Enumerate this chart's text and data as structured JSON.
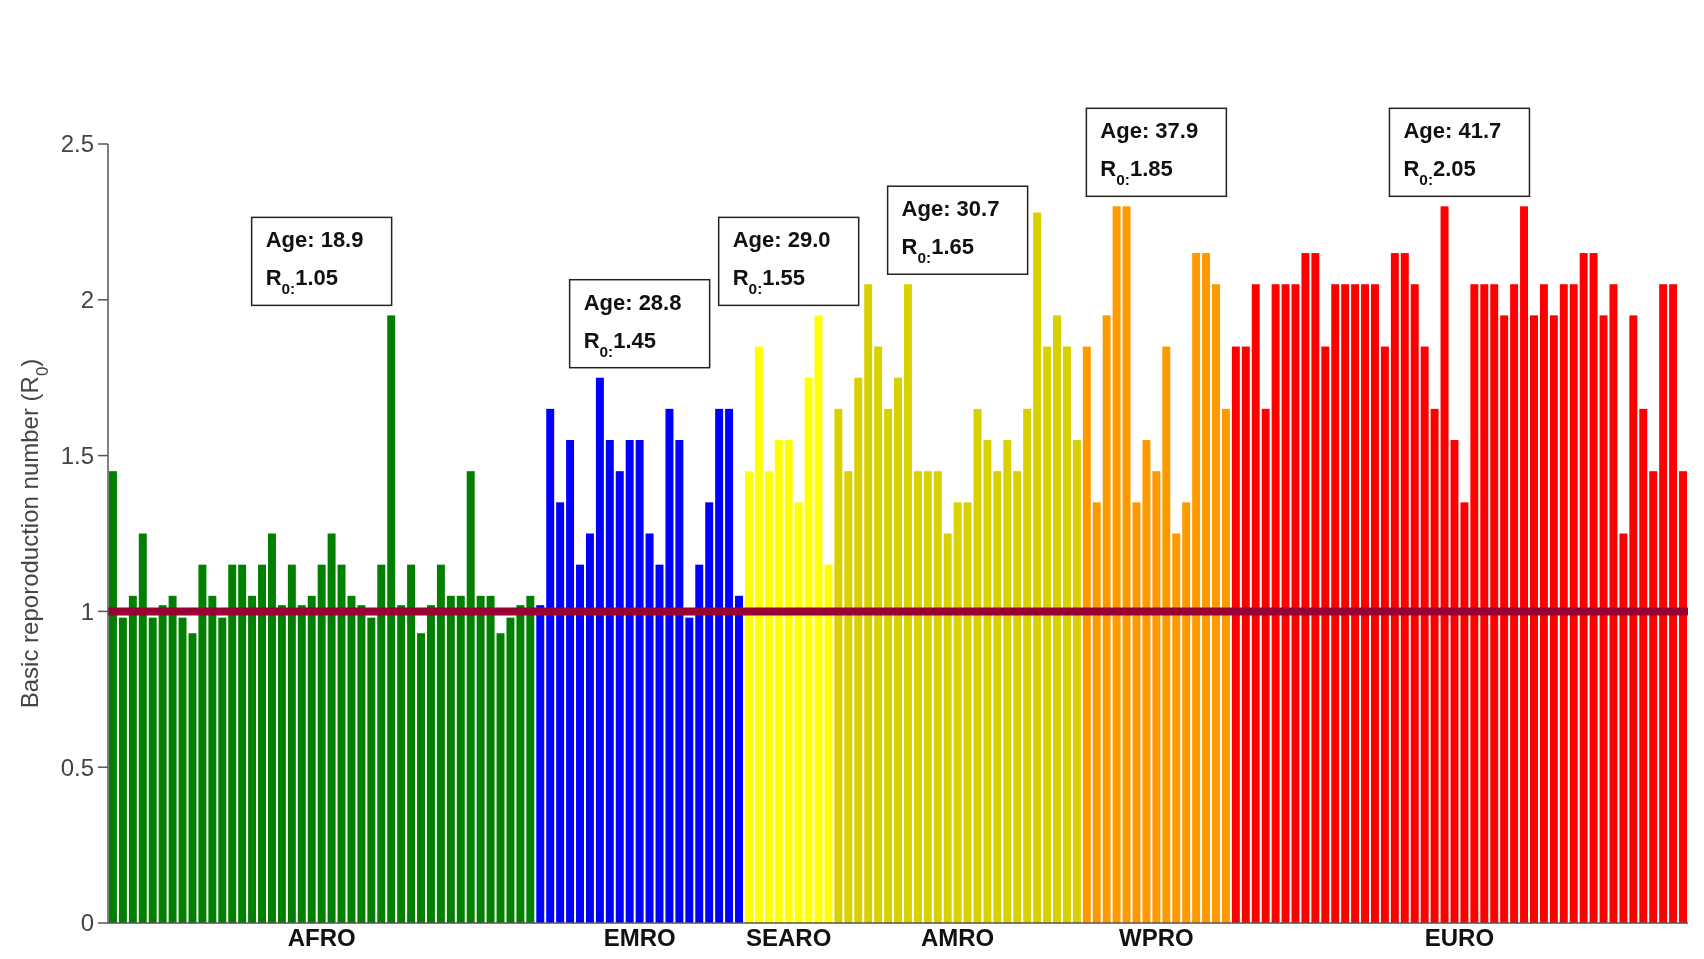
{
  "chart_data": {
    "type": "bar",
    "stacked": true,
    "ylabel": "Basic reporoduction number (R$_{0}$)",
    "ylim": [
      0,
      2.5
    ],
    "yticks": [
      0,
      0.5,
      1,
      1.5,
      2,
      2.5
    ],
    "categories": [
      null,
      null,
      null,
      null,
      null,
      null,
      null,
      null,
      null,
      null,
      null,
      null,
      null,
      null,
      null,
      null,
      null,
      null,
      null,
      null,
      null,
      null,
      null,
      null,
      null,
      null,
      null,
      null,
      null,
      null,
      null,
      null,
      null,
      null,
      null,
      null,
      null,
      null,
      null,
      null,
      null,
      null,
      null,
      null,
      null,
      null,
      null,
      null,
      null,
      null,
      null,
      null,
      null,
      null,
      null,
      null,
      null,
      null,
      null,
      null,
      null,
      null,
      null,
      null,
      null,
      null,
      null,
      null,
      null,
      null,
      null,
      null,
      null,
      null,
      null,
      null,
      null,
      null,
      null,
      null,
      null,
      null,
      null,
      null,
      null,
      null,
      null,
      null,
      null,
      null,
      null,
      null,
      null,
      null,
      null,
      null,
      null,
      null,
      null,
      null,
      null,
      null,
      null,
      null,
      null,
      null,
      null,
      null,
      null,
      null,
      null,
      null,
      null,
      null,
      null,
      null,
      null,
      null,
      null,
      null,
      null,
      null,
      null,
      null,
      null,
      null,
      null,
      null,
      null,
      null,
      null,
      null,
      null,
      null,
      null,
      null,
      null,
      null,
      null,
      null,
      null,
      null,
      null,
      null,
      null,
      null,
      null,
      null,
      null,
      null,
      null,
      null,
      null,
      null,
      null,
      null,
      null,
      null,
      null
    ],
    "series": [
      {
        "name": "AFRO",
        "color": "#007f00",
        "values": [
          1.45,
          0.98,
          1.05,
          1.25,
          0.98,
          1.02,
          1.05,
          0.98,
          0.93,
          1.15,
          1.05,
          0.98,
          1.15,
          1.15,
          1.05,
          1.15,
          1.25,
          1.02,
          1.15,
          1.02,
          1.05,
          1.15,
          1.25,
          1.15,
          1.05,
          1.02,
          0.98,
          1.15,
          1.95,
          1.02,
          1.15,
          0.93,
          1.02,
          1.15,
          1.05,
          1.05,
          1.45,
          1.05,
          1.05,
          0.93,
          0.98,
          1.02,
          1.05,
          null,
          null,
          null,
          null,
          null,
          null,
          null,
          null,
          null,
          null,
          null,
          null,
          null,
          null,
          null,
          null,
          null,
          null,
          null,
          null,
          null,
          null,
          null,
          null,
          null,
          null,
          null,
          null,
          null,
          null,
          null,
          null,
          null,
          null,
          null,
          null,
          null,
          null,
          null,
          null,
          null,
          null,
          null,
          null,
          null,
          null,
          null,
          null,
          null,
          null,
          null,
          null,
          null,
          null,
          null,
          null,
          null,
          null,
          null,
          null,
          null,
          null,
          null,
          null,
          null,
          null,
          null,
          null,
          null,
          null,
          null,
          null,
          null,
          null,
          null,
          null,
          null,
          null,
          null,
          null,
          null,
          null,
          null,
          null,
          null,
          null,
          null,
          null,
          null,
          null,
          null,
          null,
          null,
          null,
          null,
          null,
          null,
          null,
          null,
          null,
          null,
          null,
          null,
          null,
          null,
          null,
          null,
          null,
          null,
          null,
          null,
          null,
          null,
          null,
          null,
          null
        ]
      },
      {
        "name": "EMRO",
        "color": "#0000ff",
        "values": [
          null,
          null,
          null,
          null,
          null,
          null,
          null,
          null,
          null,
          null,
          null,
          null,
          null,
          null,
          null,
          null,
          null,
          null,
          null,
          null,
          null,
          null,
          null,
          null,
          null,
          null,
          null,
          null,
          null,
          null,
          null,
          null,
          null,
          null,
          null,
          null,
          null,
          null,
          null,
          null,
          null,
          null,
          null,
          1.02,
          1.65,
          1.35,
          1.55,
          1.15,
          1.25,
          1.75,
          1.55,
          1.45,
          1.55,
          1.55,
          1.25,
          1.15,
          1.65,
          1.55,
          0.98,
          1.15,
          1.35,
          1.65,
          1.65,
          1.05,
          null,
          null,
          null,
          null,
          null,
          null,
          null,
          null,
          null,
          null,
          null,
          null,
          null,
          null,
          null,
          null,
          null,
          null,
          null,
          null,
          null,
          null,
          null,
          null,
          null,
          null,
          null,
          null,
          null,
          null,
          null,
          null,
          null,
          null,
          null,
          null,
          null,
          null,
          null,
          null,
          null,
          null,
          null,
          null,
          null,
          null,
          null,
          null,
          null,
          null,
          null,
          null,
          null,
          null,
          null,
          null,
          null,
          null,
          null,
          null,
          null,
          null,
          null,
          null,
          null,
          null,
          null,
          null,
          null,
          null,
          null,
          null,
          null,
          null,
          null,
          null,
          null,
          null,
          null,
          null,
          null,
          null,
          null,
          null,
          null,
          null,
          null,
          null,
          null,
          null,
          null,
          null,
          null,
          null,
          null
        ]
      },
      {
        "name": "SEARO",
        "color": "#ffff00",
        "values": [
          null,
          null,
          null,
          null,
          null,
          null,
          null,
          null,
          null,
          null,
          null,
          null,
          null,
          null,
          null,
          null,
          null,
          null,
          null,
          null,
          null,
          null,
          null,
          null,
          null,
          null,
          null,
          null,
          null,
          null,
          null,
          null,
          null,
          null,
          null,
          null,
          null,
          null,
          null,
          null,
          null,
          null,
          null,
          null,
          null,
          null,
          null,
          null,
          null,
          null,
          null,
          null,
          null,
          null,
          null,
          null,
          null,
          null,
          null,
          null,
          null,
          null,
          null,
          null,
          1.45,
          1.85,
          1.45,
          1.55,
          1.55,
          1.35,
          1.75,
          1.95,
          1.15,
          null,
          null,
          null,
          null,
          null,
          null,
          null,
          null,
          null,
          null,
          null,
          null,
          null,
          null,
          null,
          null,
          null,
          null,
          null,
          null,
          null,
          null,
          null,
          null,
          null,
          null,
          null,
          null,
          null,
          null,
          null,
          null,
          null,
          null,
          null,
          null,
          null,
          null,
          null,
          null,
          null,
          null,
          null,
          null,
          null,
          null,
          null,
          null,
          null,
          null,
          null,
          null,
          null,
          null,
          null,
          null,
          null,
          null,
          null,
          null,
          null,
          null,
          null,
          null,
          null,
          null,
          null,
          null,
          null,
          null,
          null,
          null,
          null,
          null,
          null,
          null,
          null,
          null,
          null,
          null,
          null,
          null,
          null,
          null,
          null,
          null
        ]
      },
      {
        "name": "AMRO",
        "color": "#d9d000",
        "values": [
          null,
          null,
          null,
          null,
          null,
          null,
          null,
          null,
          null,
          null,
          null,
          null,
          null,
          null,
          null,
          null,
          null,
          null,
          null,
          null,
          null,
          null,
          null,
          null,
          null,
          null,
          null,
          null,
          null,
          null,
          null,
          null,
          null,
          null,
          null,
          null,
          null,
          null,
          null,
          null,
          null,
          null,
          null,
          null,
          null,
          null,
          null,
          null,
          null,
          null,
          null,
          null,
          null,
          null,
          null,
          null,
          null,
          null,
          null,
          null,
          null,
          null,
          null,
          null,
          null,
          null,
          null,
          null,
          null,
          null,
          null,
          null,
          null,
          1.65,
          1.45,
          1.75,
          2.05,
          1.85,
          1.65,
          1.75,
          2.05,
          1.45,
          1.45,
          1.45,
          1.25,
          1.35,
          1.35,
          1.65,
          1.55,
          1.45,
          1.55,
          1.45,
          1.65,
          2.28,
          1.85,
          1.95,
          1.85,
          1.55,
          null,
          null,
          null,
          null,
          null,
          null,
          null,
          null,
          null,
          null,
          null,
          null,
          null,
          null,
          null,
          null,
          null,
          null,
          null,
          null,
          null,
          null,
          null,
          null,
          null,
          null,
          null,
          null,
          null,
          null,
          null,
          null,
          null,
          null,
          null,
          null,
          null,
          null,
          null,
          null,
          null,
          null,
          null,
          null,
          null,
          null,
          null,
          null,
          null,
          null,
          null,
          null,
          null,
          null,
          null,
          null,
          null,
          null,
          null,
          null,
          null
        ]
      },
      {
        "name": "WPRO",
        "color": "#ff9900",
        "values": [
          null,
          null,
          null,
          null,
          null,
          null,
          null,
          null,
          null,
          null,
          null,
          null,
          null,
          null,
          null,
          null,
          null,
          null,
          null,
          null,
          null,
          null,
          null,
          null,
          null,
          null,
          null,
          null,
          null,
          null,
          null,
          null,
          null,
          null,
          null,
          null,
          null,
          null,
          null,
          null,
          null,
          null,
          null,
          null,
          null,
          null,
          null,
          null,
          null,
          null,
          null,
          null,
          null,
          null,
          null,
          null,
          null,
          null,
          null,
          null,
          null,
          null,
          null,
          null,
          null,
          null,
          null,
          null,
          null,
          null,
          null,
          null,
          null,
          null,
          null,
          null,
          null,
          null,
          null,
          null,
          null,
          null,
          null,
          null,
          null,
          null,
          null,
          null,
          null,
          null,
          null,
          null,
          null,
          null,
          null,
          null,
          null,
          null,
          1.85,
          1.35,
          1.95,
          2.3,
          2.3,
          1.35,
          1.55,
          1.45,
          1.85,
          1.25,
          1.35,
          2.15,
          2.15,
          2.05,
          1.65,
          null,
          null,
          null,
          null,
          null,
          null,
          null,
          null,
          null,
          null,
          null,
          null,
          null,
          null,
          null,
          null,
          null,
          null,
          null,
          null,
          null,
          null,
          null,
          null,
          null,
          null,
          null,
          null,
          null,
          null,
          null,
          null,
          null,
          null,
          null,
          null,
          null,
          null,
          null,
          null,
          null,
          null,
          null,
          null,
          null,
          null
        ]
      },
      {
        "name": "EURO",
        "color": "#ff0000",
        "values": [
          null,
          null,
          null,
          null,
          null,
          null,
          null,
          null,
          null,
          null,
          null,
          null,
          null,
          null,
          null,
          null,
          null,
          null,
          null,
          null,
          null,
          null,
          null,
          null,
          null,
          null,
          null,
          null,
          null,
          null,
          null,
          null,
          null,
          null,
          null,
          null,
          null,
          null,
          null,
          null,
          null,
          null,
          null,
          null,
          null,
          null,
          null,
          null,
          null,
          null,
          null,
          null,
          null,
          null,
          null,
          null,
          null,
          null,
          null,
          null,
          null,
          null,
          null,
          null,
          null,
          null,
          null,
          null,
          null,
          null,
          null,
          null,
          null,
          null,
          null,
          null,
          null,
          null,
          null,
          null,
          null,
          null,
          null,
          null,
          null,
          null,
          null,
          null,
          null,
          null,
          null,
          null,
          null,
          null,
          null,
          null,
          null,
          null,
          null,
          null,
          null,
          null,
          null,
          null,
          null,
          null,
          null,
          null,
          null,
          null,
          null,
          null,
          null,
          1.85,
          1.85,
          2.05,
          1.65,
          2.05,
          2.05,
          2.05,
          2.15,
          2.15,
          1.85,
          2.05,
          2.05,
          2.05,
          2.05,
          2.05,
          1.85,
          2.15,
          2.15,
          2.05,
          1.85,
          1.65,
          2.3,
          1.55,
          1.35,
          2.05,
          2.05,
          2.05,
          1.95,
          2.05,
          2.3,
          1.95,
          2.05,
          1.95,
          2.05,
          2.05,
          2.15,
          2.15,
          1.95,
          2.05,
          1.25,
          1.95,
          1.65,
          1.45,
          2.05,
          2.05,
          1.45
        ]
      }
    ],
    "ref_lines": [
      {
        "axis": "y",
        "value": 1,
        "color": "#990033"
      }
    ],
    "annotations": [
      "Age: 18.9\nR$_{0:}$1.05",
      "Age: 28.8\nR$_{0:}$1.45",
      "Age: 29.0\nR$_{0:}$1.55",
      "Age: 30.7\nR$_{0:}$1.65",
      "Age: 37.9\nR$_{0:}$1.85",
      "Age: 41.7\nR$_{0:}$2.05"
    ]
  }
}
